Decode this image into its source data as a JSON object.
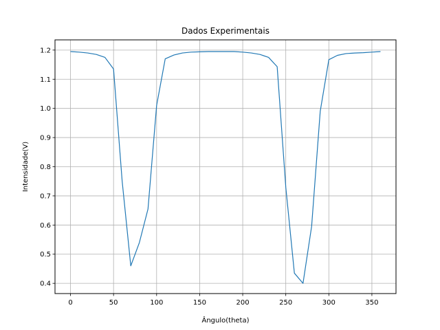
{
  "chart_data": {
    "type": "line",
    "title": "Dados Experimentais",
    "xlabel": "Ângulo(theta)",
    "ylabel": "Intensidade(V)",
    "xlim": [
      -18,
      378
    ],
    "ylim": [
      0.365,
      1.235
    ],
    "xticks": [
      0,
      50,
      100,
      150,
      200,
      250,
      300,
      350
    ],
    "yticks": [
      0.4,
      0.5,
      0.6,
      0.7,
      0.8,
      0.9,
      1.0,
      1.1,
      1.2
    ],
    "xtick_labels": [
      "0",
      "50",
      "100",
      "150",
      "200",
      "250",
      "300",
      "350"
    ],
    "ytick_labels": [
      "0.4",
      "0.5",
      "0.6",
      "0.7",
      "0.8",
      "0.9",
      "1.0",
      "1.1",
      "1.2"
    ],
    "grid": true,
    "line_color": "#1f77b4",
    "series": [
      {
        "x": [
          0,
          10,
          20,
          30,
          40,
          50,
          60,
          70,
          80,
          90,
          100,
          110,
          120,
          130,
          140,
          150,
          160,
          170,
          180,
          190,
          200,
          210,
          220,
          230,
          240,
          250,
          260,
          270,
          280,
          290,
          300,
          310,
          320,
          330,
          340,
          350,
          360
        ],
        "y": [
          1.195,
          1.193,
          1.19,
          1.185,
          1.175,
          1.135,
          0.75,
          0.46,
          0.54,
          0.655,
          1.01,
          1.17,
          1.183,
          1.19,
          1.193,
          1.194,
          1.195,
          1.195,
          1.195,
          1.195,
          1.193,
          1.19,
          1.185,
          1.175,
          1.143,
          0.73,
          0.435,
          0.4,
          0.595,
          0.99,
          1.167,
          1.182,
          1.188,
          1.19,
          1.191,
          1.193,
          1.195
        ]
      }
    ]
  }
}
